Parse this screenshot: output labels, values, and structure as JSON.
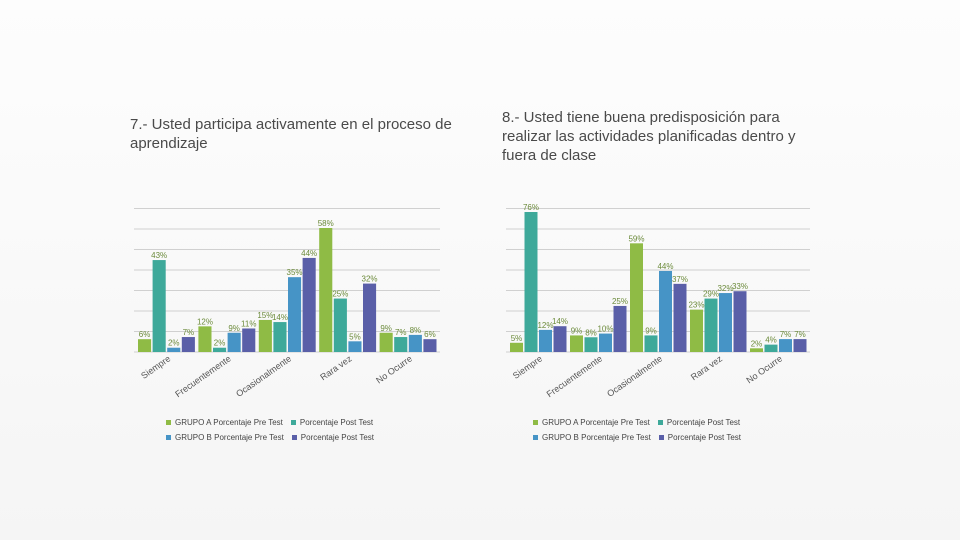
{
  "slide": {
    "left_title": "7.- Usted participa activamente en el proceso de aprendizaje",
    "right_title": "8.- Usted tiene buena predisposición para realizar las actividades planificadas dentro y fuera de clase"
  },
  "colors": {
    "grupo_a_pre": "#8fbb45",
    "grupo_a_post": "#3ea99a",
    "grupo_b_pre": "#4694c6",
    "grupo_b_post": "#5a5fa8",
    "gridline": "#d0d0d0"
  },
  "chart_data": [
    {
      "type": "bar",
      "categories": [
        "Siempre",
        "Frecuentemente",
        "Ocasionalmente",
        "Rara vez",
        "No Ocurre"
      ],
      "series": [
        {
          "name": "GRUPO A Porcentaje Pre Test",
          "values": [
            6,
            12,
            15,
            58,
            9
          ],
          "labels": [
            "6%",
            "12%",
            "15%",
            "58%",
            "9%"
          ]
        },
        {
          "name": "Porcentaje Post Test",
          "values": [
            43,
            2,
            14,
            25,
            7
          ],
          "labels": [
            "43%",
            "2%",
            "14%",
            "25%",
            "7%"
          ]
        },
        {
          "name": "GRUPO B Porcentaje Pre Test",
          "values": [
            2,
            9,
            35,
            5,
            8
          ],
          "labels": [
            "2%",
            "9%",
            "35%",
            "5%",
            "8%"
          ]
        },
        {
          "name": "Porcentaje Post Test",
          "values": [
            7,
            11,
            44,
            32,
            6
          ],
          "labels": [
            "7%",
            "11%",
            "44%",
            "32%",
            "6%"
          ]
        }
      ],
      "legend": "bottom",
      "grid": true
    },
    {
      "type": "bar",
      "categories": [
        "Siempre",
        "Frecuentemente",
        "Ocasionalmente",
        "Rara vez",
        "No Ocurre"
      ],
      "series": [
        {
          "name": "GRUPO A Porcentaje Pre Test",
          "values": [
            5,
            9,
            59,
            23,
            2
          ],
          "labels": [
            "5%",
            "9%",
            "59%",
            "23%",
            "2%"
          ]
        },
        {
          "name": "Porcentaje Post Test",
          "values": [
            76,
            8,
            9,
            29,
            4
          ],
          "labels": [
            "76%",
            "8%",
            "9%",
            "29%",
            "4%"
          ]
        },
        {
          "name": "GRUPO B Porcentaje Pre Test",
          "values": [
            12,
            10,
            44,
            32,
            7
          ],
          "labels": [
            "12%",
            "10%",
            "44%",
            "32%",
            "7%"
          ]
        },
        {
          "name": "Porcentaje Post Test",
          "values": [
            14,
            25,
            37,
            33,
            7
          ],
          "labels": [
            "14%",
            "25%",
            "37%",
            "33%",
            "7%"
          ]
        }
      ],
      "legend": "bottom",
      "grid": true
    }
  ]
}
